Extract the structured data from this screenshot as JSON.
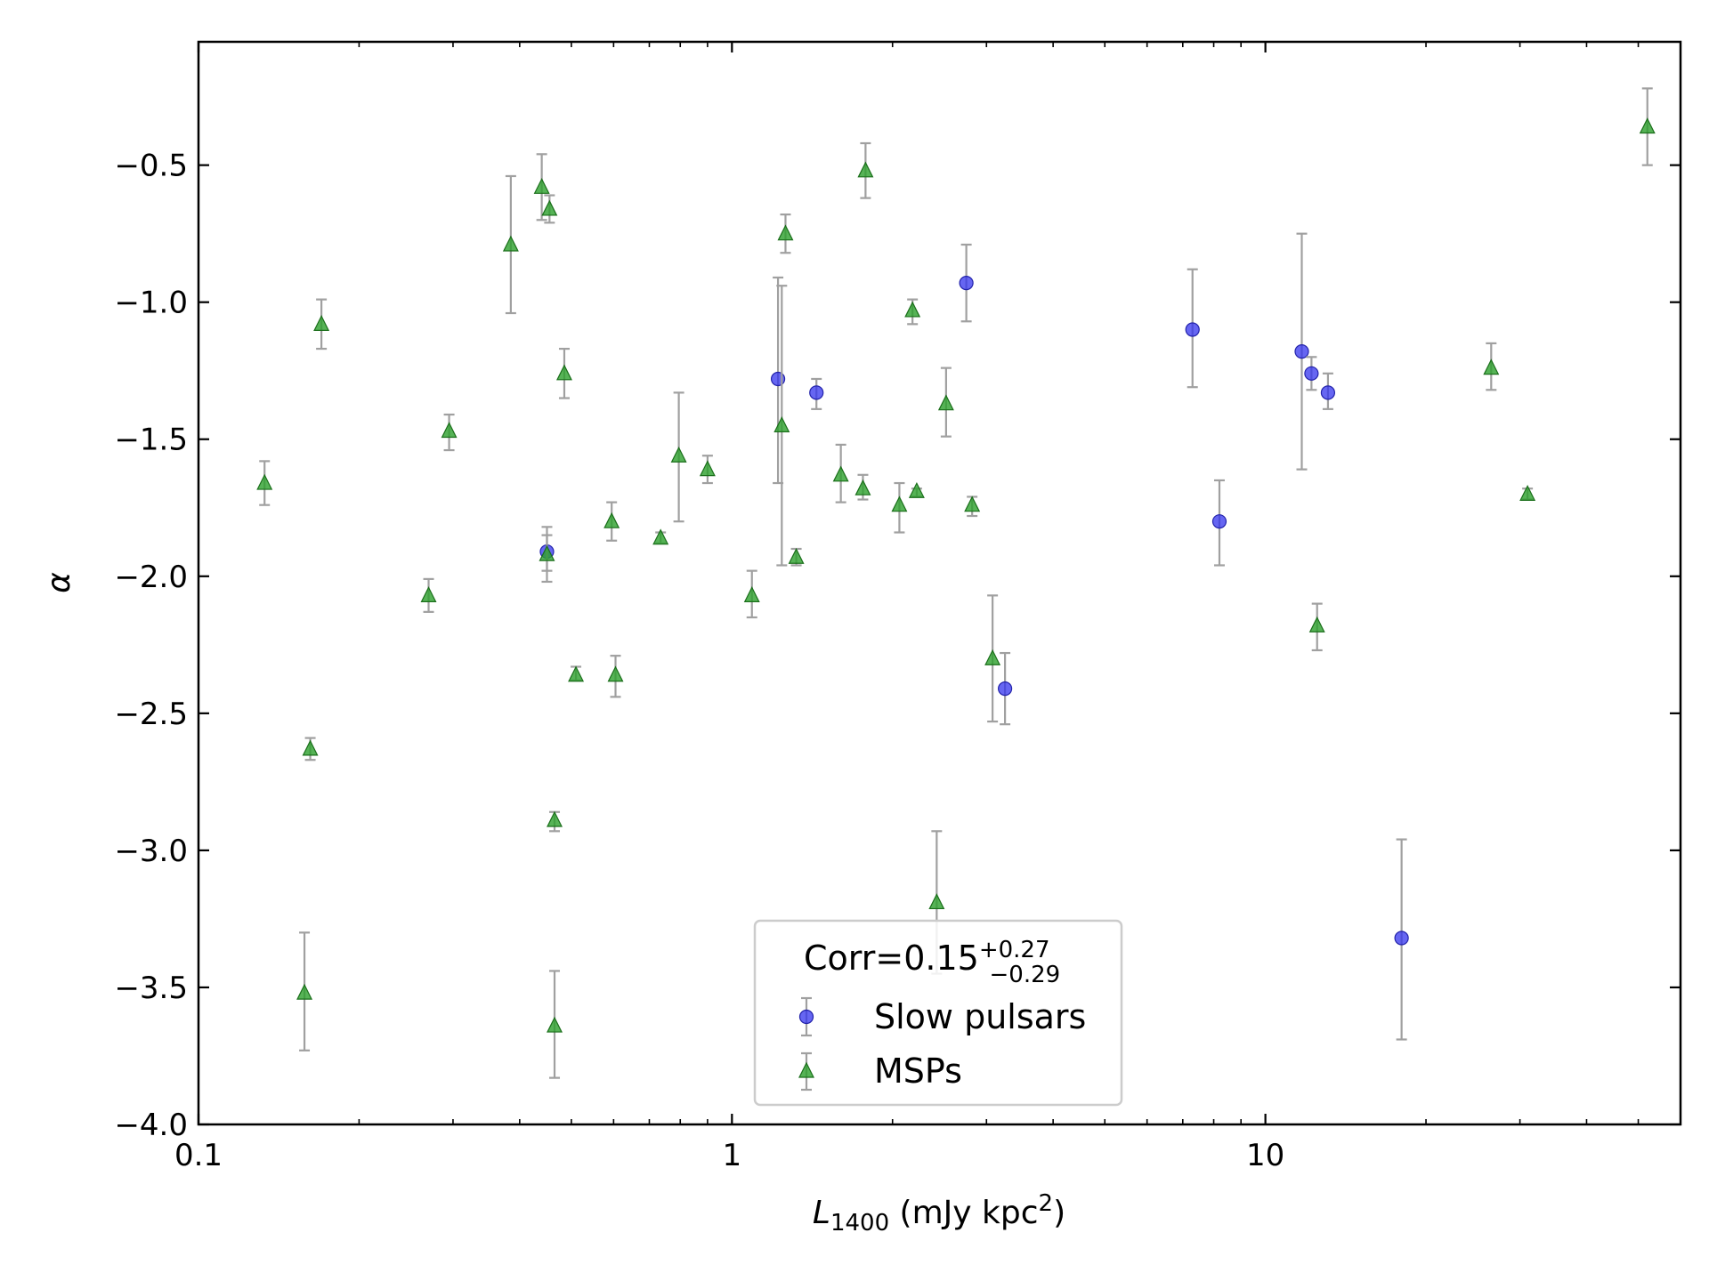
{
  "chart_data": {
    "type": "scatter",
    "title": "",
    "xlabel": {
      "main": "L",
      "sub": "1400",
      "rest": " (mJy kpc",
      "sup": "2",
      "close": ")"
    },
    "ylabel": "α",
    "xscale": "log",
    "xlim": [
      0.1,
      60
    ],
    "ylim": [
      -4.0,
      -0.05
    ],
    "xticks": [
      {
        "value": 0.1,
        "label": "0.1"
      },
      {
        "value": 1,
        "label": "1"
      },
      {
        "value": 10,
        "label": "10"
      }
    ],
    "yticks": [
      {
        "value": -0.5,
        "label": "−0.5"
      },
      {
        "value": -1.0,
        "label": "−1.0"
      },
      {
        "value": -1.5,
        "label": "−1.5"
      },
      {
        "value": -2.0,
        "label": "−2.0"
      },
      {
        "value": -2.5,
        "label": "−2.5"
      },
      {
        "value": -3.0,
        "label": "−3.0"
      },
      {
        "value": -3.5,
        "label": "−3.5"
      },
      {
        "value": -4.0,
        "label": "−4.0"
      }
    ],
    "grid": false,
    "legend": {
      "placement": "bottom-center",
      "title": {
        "base": "Corr=0.15",
        "sup": "+0.27",
        "sub": "−0.29"
      }
    },
    "series": [
      {
        "name": "Slow pulsars",
        "marker": "circle",
        "color": "#3333ee",
        "points": [
          {
            "x": 0.45,
            "y": -1.91,
            "lo": -2.02,
            "hi": -1.82
          },
          {
            "x": 1.22,
            "y": -1.28,
            "lo": -1.66,
            "hi": -0.91
          },
          {
            "x": 1.44,
            "y": -1.33,
            "lo": -1.39,
            "hi": -1.28
          },
          {
            "x": 2.75,
            "y": -0.93,
            "lo": -1.07,
            "hi": -0.79
          },
          {
            "x": 3.25,
            "y": -2.41,
            "lo": -2.54,
            "hi": -2.28
          },
          {
            "x": 7.3,
            "y": -1.1,
            "lo": -1.31,
            "hi": -0.88
          },
          {
            "x": 8.2,
            "y": -1.8,
            "lo": -1.96,
            "hi": -1.65
          },
          {
            "x": 11.7,
            "y": -1.18,
            "lo": -1.61,
            "hi": -0.75
          },
          {
            "x": 12.2,
            "y": -1.26,
            "lo": -1.32,
            "hi": -1.2
          },
          {
            "x": 13.1,
            "y": -1.33,
            "lo": -1.39,
            "hi": -1.26
          },
          {
            "x": 18.0,
            "y": -3.32,
            "lo": -3.69,
            "hi": -2.96
          }
        ]
      },
      {
        "name": "MSPs",
        "marker": "triangle",
        "color": "#2ca02c",
        "points": [
          {
            "x": 0.133,
            "y": -1.66,
            "lo": -1.74,
            "hi": -1.58
          },
          {
            "x": 0.162,
            "y": -2.63,
            "lo": -2.67,
            "hi": -2.59
          },
          {
            "x": 0.158,
            "y": -3.52,
            "lo": -3.73,
            "hi": -3.3
          },
          {
            "x": 0.17,
            "y": -1.08,
            "lo": -1.17,
            "hi": -0.99
          },
          {
            "x": 0.27,
            "y": -2.07,
            "lo": -2.13,
            "hi": -2.01
          },
          {
            "x": 0.295,
            "y": -1.47,
            "lo": -1.54,
            "hi": -1.41
          },
          {
            "x": 0.385,
            "y": -0.79,
            "lo": -1.04,
            "hi": -0.54
          },
          {
            "x": 0.44,
            "y": -0.58,
            "lo": -0.7,
            "hi": -0.46
          },
          {
            "x": 0.45,
            "y": -1.92,
            "lo": -1.98,
            "hi": -1.85
          },
          {
            "x": 0.455,
            "y": -0.66,
            "lo": -0.71,
            "hi": -0.61
          },
          {
            "x": 0.465,
            "y": -2.89,
            "lo": -2.93,
            "hi": -2.86
          },
          {
            "x": 0.465,
            "y": -3.64,
            "lo": -3.83,
            "hi": -3.44
          },
          {
            "x": 0.485,
            "y": -1.26,
            "lo": -1.35,
            "hi": -1.17
          },
          {
            "x": 0.51,
            "y": -2.36,
            "lo": -2.38,
            "hi": -2.33
          },
          {
            "x": 0.595,
            "y": -1.8,
            "lo": -1.87,
            "hi": -1.73
          },
          {
            "x": 0.605,
            "y": -2.36,
            "lo": -2.44,
            "hi": -2.29
          },
          {
            "x": 0.735,
            "y": -1.86,
            "lo": -1.88,
            "hi": -1.84
          },
          {
            "x": 0.795,
            "y": -1.56,
            "lo": -1.8,
            "hi": -1.33
          },
          {
            "x": 0.9,
            "y": -1.61,
            "lo": -1.66,
            "hi": -1.56
          },
          {
            "x": 1.09,
            "y": -2.07,
            "lo": -2.15,
            "hi": -1.98
          },
          {
            "x": 1.24,
            "y": -1.45,
            "lo": -1.96,
            "hi": -0.94
          },
          {
            "x": 1.26,
            "y": -0.75,
            "lo": -0.82,
            "hi": -0.68
          },
          {
            "x": 1.32,
            "y": -1.93,
            "lo": -1.96,
            "hi": -1.9
          },
          {
            "x": 1.6,
            "y": -1.63,
            "lo": -1.73,
            "hi": -1.52
          },
          {
            "x": 1.76,
            "y": -1.68,
            "lo": -1.72,
            "hi": -1.63
          },
          {
            "x": 1.78,
            "y": -0.52,
            "lo": -0.62,
            "hi": -0.42
          },
          {
            "x": 2.06,
            "y": -1.74,
            "lo": -1.84,
            "hi": -1.66
          },
          {
            "x": 2.18,
            "y": -1.03,
            "lo": -1.08,
            "hi": -0.99
          },
          {
            "x": 2.22,
            "y": -1.69,
            "lo": -1.71,
            "hi": -1.68
          },
          {
            "x": 2.42,
            "y": -3.19,
            "lo": -3.45,
            "hi": -2.93
          },
          {
            "x": 2.52,
            "y": -1.37,
            "lo": -1.49,
            "hi": -1.24
          },
          {
            "x": 2.82,
            "y": -1.74,
            "lo": -1.78,
            "hi": -1.71
          },
          {
            "x": 3.08,
            "y": -2.3,
            "lo": -2.53,
            "hi": -2.07
          },
          {
            "x": 12.5,
            "y": -2.18,
            "lo": -2.27,
            "hi": -2.1
          },
          {
            "x": 26.5,
            "y": -1.24,
            "lo": -1.32,
            "hi": -1.15
          },
          {
            "x": 31.0,
            "y": -1.7,
            "lo": -1.72,
            "hi": -1.68
          },
          {
            "x": 52.0,
            "y": -0.36,
            "lo": -0.5,
            "hi": -0.22
          }
        ]
      }
    ]
  }
}
